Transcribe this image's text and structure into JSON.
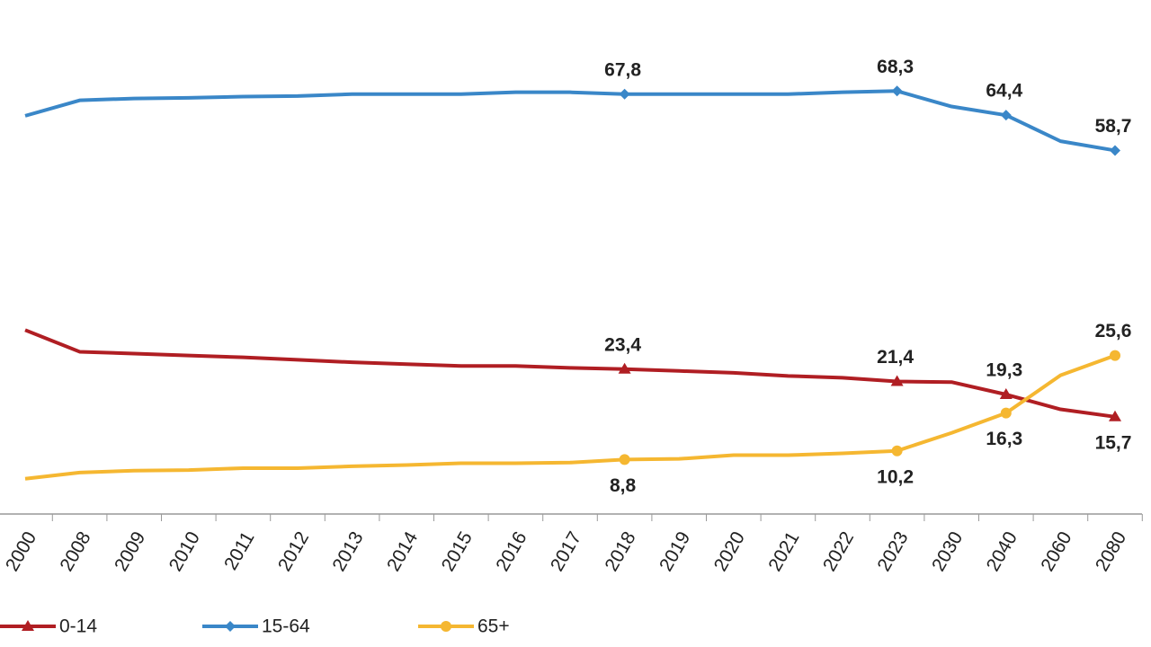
{
  "chart_data": {
    "type": "line",
    "categories": [
      "2000",
      "2008",
      "2009",
      "2010",
      "2011",
      "2012",
      "2013",
      "2014",
      "2015",
      "2016",
      "2017",
      "2018",
      "2019",
      "2020",
      "2021",
      "2022",
      "2023",
      "2030",
      "2040",
      "2060",
      "2080"
    ],
    "ylim": [
      0,
      83
    ],
    "series": [
      {
        "name": "0-14",
        "color": "#b01e23",
        "marker": "triangle",
        "values": [
          29.7,
          26.2,
          25.9,
          25.6,
          25.3,
          24.9,
          24.5,
          24.2,
          23.9,
          23.9,
          23.6,
          23.4,
          23.1,
          22.8,
          22.3,
          22.0,
          21.4,
          21.3,
          19.3,
          16.9,
          15.7
        ],
        "value_labels": [
          null,
          null,
          null,
          null,
          null,
          null,
          null,
          null,
          null,
          null,
          null,
          "23,4",
          null,
          null,
          null,
          null,
          "21,4",
          null,
          "19,3",
          null,
          "15,7"
        ]
      },
      {
        "name": "15-64",
        "color": "#3a87c8",
        "marker": "diamond",
        "values": [
          64.3,
          66.8,
          67.1,
          67.2,
          67.4,
          67.5,
          67.8,
          67.8,
          67.8,
          68.1,
          68.1,
          67.8,
          67.8,
          67.8,
          67.8,
          68.1,
          68.3,
          65.8,
          64.4,
          60.2,
          58.7
        ],
        "value_labels": [
          null,
          null,
          null,
          null,
          null,
          null,
          null,
          null,
          null,
          null,
          null,
          "67,8",
          null,
          null,
          null,
          null,
          "68,3",
          null,
          "64,4",
          null,
          "58,7"
        ]
      },
      {
        "name": "65+",
        "color": "#f5b731",
        "marker": "circle",
        "values": [
          5.7,
          6.7,
          7.0,
          7.1,
          7.4,
          7.4,
          7.7,
          7.9,
          8.2,
          8.2,
          8.3,
          8.8,
          8.9,
          9.5,
          9.5,
          9.8,
          10.2,
          13.1,
          16.3,
          22.4,
          25.6
        ],
        "value_labels": [
          null,
          null,
          null,
          null,
          null,
          null,
          null,
          null,
          null,
          null,
          null,
          "8,8",
          null,
          null,
          null,
          null,
          "10,2",
          null,
          "16,3",
          null,
          "25,6"
        ]
      }
    ]
  }
}
